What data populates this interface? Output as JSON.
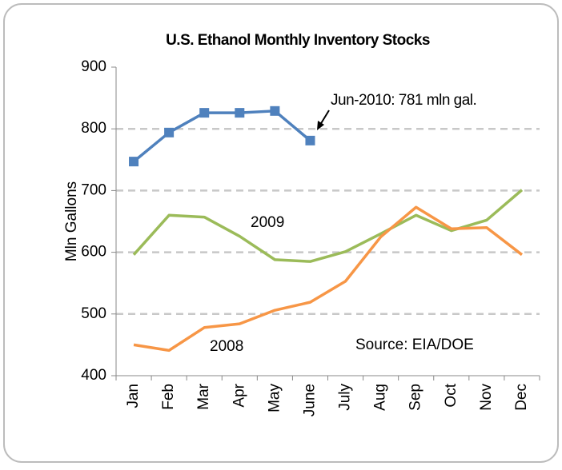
{
  "chart_data": {
    "type": "line",
    "title": "U.S. Ethanol Monthly Inventory Stocks",
    "y_label": "Mln Gallons",
    "categories": [
      "Jan",
      "Feb",
      "Mar",
      "Apr",
      "May",
      "June",
      "July",
      "Aug",
      "Sep",
      "Oct",
      "Nov",
      "Dec"
    ],
    "series": [
      {
        "color": "#4f81bd",
        "marker": "square",
        "values": [
          747,
          794,
          826,
          826,
          829,
          781,
          null,
          null,
          null,
          null,
          null,
          null
        ]
      },
      {
        "name": "2009",
        "color": "#9bbb59",
        "values": [
          596,
          660,
          657,
          626,
          588,
          585,
          601,
          630,
          660,
          635,
          652,
          701
        ]
      },
      {
        "name": "2008",
        "color": "#f79646",
        "values": [
          450,
          441,
          478,
          484,
          506,
          519,
          553,
          625,
          673,
          638,
          640,
          596
        ]
      }
    ],
    "ylim": [
      400,
      900
    ],
    "yticks": [
      400,
      500,
      600,
      700,
      800,
      900
    ],
    "grid": true,
    "annotations": [
      "Jun-2010: 781 mln gal.",
      "Source: EIA/DOE"
    ]
  }
}
